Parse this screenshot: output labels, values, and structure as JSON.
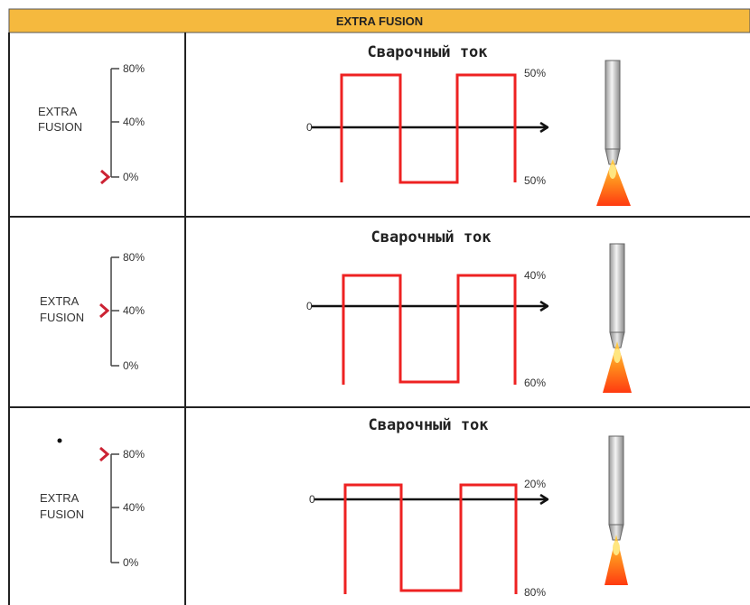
{
  "header": {
    "title": "EXTRA FUSION",
    "color": "#f5b93e"
  },
  "scale": {
    "top": "80%",
    "mid": "40%",
    "bottom": "0%"
  },
  "rows": [
    {
      "label_line1": "EXTRA",
      "label_line2": "FUSION",
      "setting": "0%",
      "wave_title": "Сварочный ток",
      "zero": "0",
      "upper_pct": "50%",
      "lower_pct": "50%",
      "upper_value": 50,
      "lower_value": 50
    },
    {
      "label_line1": "EXTRA",
      "label_line2": "FUSION",
      "setting": "40%",
      "wave_title": "Сварочный ток",
      "zero": "0",
      "upper_pct": "40%",
      "lower_pct": "60%",
      "upper_value": 40,
      "lower_value": 60
    },
    {
      "label_line1": "EXTRA",
      "label_line2": "FUSION",
      "setting": "80%",
      "wave_title": "Сварочный ток",
      "zero": "0",
      "upper_pct": "20%",
      "lower_pct": "80%",
      "upper_value": 20,
      "lower_value": 80
    }
  ],
  "colors": {
    "wave": "#ee2222",
    "marker": "#cc2233",
    "axis": "#111111",
    "grid": "#222222"
  }
}
